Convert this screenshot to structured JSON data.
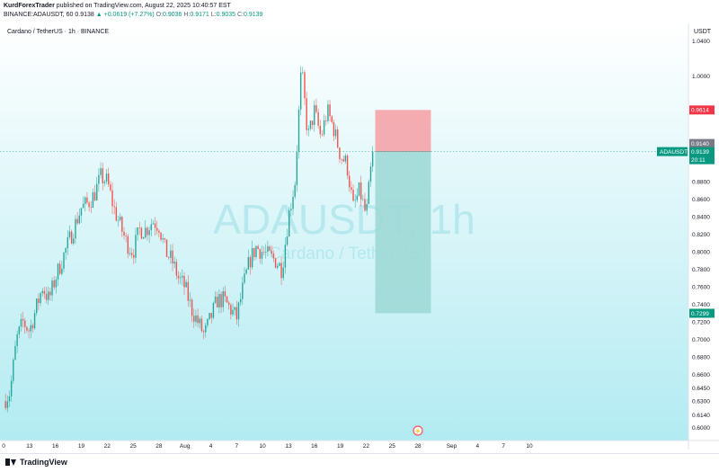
{
  "header": {
    "author": "KurdForexTrader",
    "published_text": "published on TradingView.com, August 22, 2025 10:40:57 EST",
    "symbol_line": "BINANCE:ADAUSDT, 60",
    "last": "0.9138",
    "change": "▲ +0.0619 (+7.27%)",
    "o_label": "O:",
    "o_value": "0.9036",
    "h_label": "H:",
    "h_value": "0.9171",
    "l_label": "L:",
    "l_value": "0.9035",
    "c_label": "C:",
    "c_value": "0.9139"
  },
  "chart_title": "Cardano / TetherUS · 1h · BINANCE",
  "watermark": {
    "main": "ADAUSDT, 1h",
    "sub": "Cardano / TetherUS"
  },
  "currency": "USDT",
  "colors": {
    "up": "#26a69a",
    "down": "#ef5350",
    "bg_top": "#ffffff",
    "bg_bottom": "#b2ebf2",
    "stop_zone": "#f4a3a8",
    "target_zone": "#9fd9d6",
    "stop_label": "#f23645",
    "target_label": "#089981"
  },
  "footer": {
    "logo_text": "TradingView"
  },
  "chart_data": {
    "type": "candlestick",
    "title": "Cardano / TetherUS · 1h · BINANCE",
    "ylim": [
      0.585,
      1.06
    ],
    "y_ticks": [
      "1.0400",
      "1.0000",
      "0.8800",
      "0.8600",
      "0.8400",
      "0.8200",
      "0.8000",
      "0.7800",
      "0.7600",
      "0.7400",
      "0.7200",
      "0.7000",
      "0.6800",
      "0.6600",
      "0.6450",
      "0.6300",
      "0.6140",
      "0.6000"
    ],
    "x_tick_labels": [
      {
        "t": 0,
        "label": "0"
      },
      {
        "t": 2,
        "label": "13"
      },
      {
        "t": 4,
        "label": "16"
      },
      {
        "t": 6,
        "label": "19"
      },
      {
        "t": 8,
        "label": "22"
      },
      {
        "t": 10,
        "label": "25"
      },
      {
        "t": 12,
        "label": "28"
      },
      {
        "t": 14,
        "label": "Aug"
      },
      {
        "t": 16,
        "label": "4"
      },
      {
        "t": 18,
        "label": "7"
      },
      {
        "t": 20,
        "label": "10"
      },
      {
        "t": 22,
        "label": "13"
      },
      {
        "t": 24,
        "label": "16"
      },
      {
        "t": 26,
        "label": "19"
      },
      {
        "t": 28,
        "label": "22"
      },
      {
        "t": 30,
        "label": "25"
      },
      {
        "t": 32,
        "label": "28"
      },
      {
        "t": 34.6,
        "label": "Sep"
      },
      {
        "t": 36.6,
        "label": "4"
      },
      {
        "t": 38.6,
        "label": "7"
      },
      {
        "t": 40.6,
        "label": "10"
      }
    ],
    "x_range": [
      0,
      49
    ],
    "last_t": 28.5,
    "price_waypoints": [
      [
        0,
        0.63
      ],
      [
        0.5,
        0.64
      ],
      [
        1,
        0.7
      ],
      [
        1.5,
        0.72
      ],
      [
        2,
        0.71
      ],
      [
        2.5,
        0.735
      ],
      [
        3,
        0.76
      ],
      [
        3.5,
        0.745
      ],
      [
        4,
        0.77
      ],
      [
        4.5,
        0.79
      ],
      [
        5,
        0.81
      ],
      [
        5.5,
        0.83
      ],
      [
        6,
        0.85
      ],
      [
        6.5,
        0.855
      ],
      [
        7,
        0.865
      ],
      [
        7.5,
        0.885
      ],
      [
        8,
        0.88
      ],
      [
        8.5,
        0.85
      ],
      [
        9,
        0.83
      ],
      [
        9.5,
        0.81
      ],
      [
        10,
        0.8
      ],
      [
        10.5,
        0.825
      ],
      [
        11,
        0.825
      ],
      [
        11.5,
        0.835
      ],
      [
        12,
        0.83
      ],
      [
        12.5,
        0.8
      ],
      [
        13,
        0.79
      ],
      [
        13.5,
        0.77
      ],
      [
        14,
        0.76
      ],
      [
        14.5,
        0.735
      ],
      [
        15,
        0.72
      ],
      [
        15.5,
        0.705
      ],
      [
        16,
        0.725
      ],
      [
        16.5,
        0.745
      ],
      [
        17,
        0.745
      ],
      [
        17.5,
        0.735
      ],
      [
        18,
        0.725
      ],
      [
        18.5,
        0.76
      ],
      [
        19,
        0.79
      ],
      [
        19.5,
        0.805
      ],
      [
        20,
        0.8
      ],
      [
        20.5,
        0.795
      ],
      [
        21,
        0.79
      ],
      [
        21.5,
        0.78
      ],
      [
        22,
        0.84
      ],
      [
        22.5,
        0.88
      ],
      [
        23,
        1.01
      ],
      [
        23.5,
        0.93
      ],
      [
        24,
        0.96
      ],
      [
        24.5,
        0.93
      ],
      [
        25,
        0.96
      ],
      [
        25.5,
        0.94
      ],
      [
        26,
        0.91
      ],
      [
        26.5,
        0.9
      ],
      [
        27,
        0.85
      ],
      [
        27.5,
        0.87
      ],
      [
        28,
        0.84
      ],
      [
        28.5,
        0.914
      ]
    ],
    "risk_reward": {
      "t_start": 28.7,
      "t_end": 33.0,
      "entry": 0.914,
      "stop": 0.9614,
      "target": 0.7299
    },
    "labels": {
      "stop": "0.9614",
      "entry": "0.9140",
      "price_symbol": "ADAUSDT",
      "price": "0.9139",
      "countdown": "20:11",
      "target": "0.7299"
    }
  }
}
